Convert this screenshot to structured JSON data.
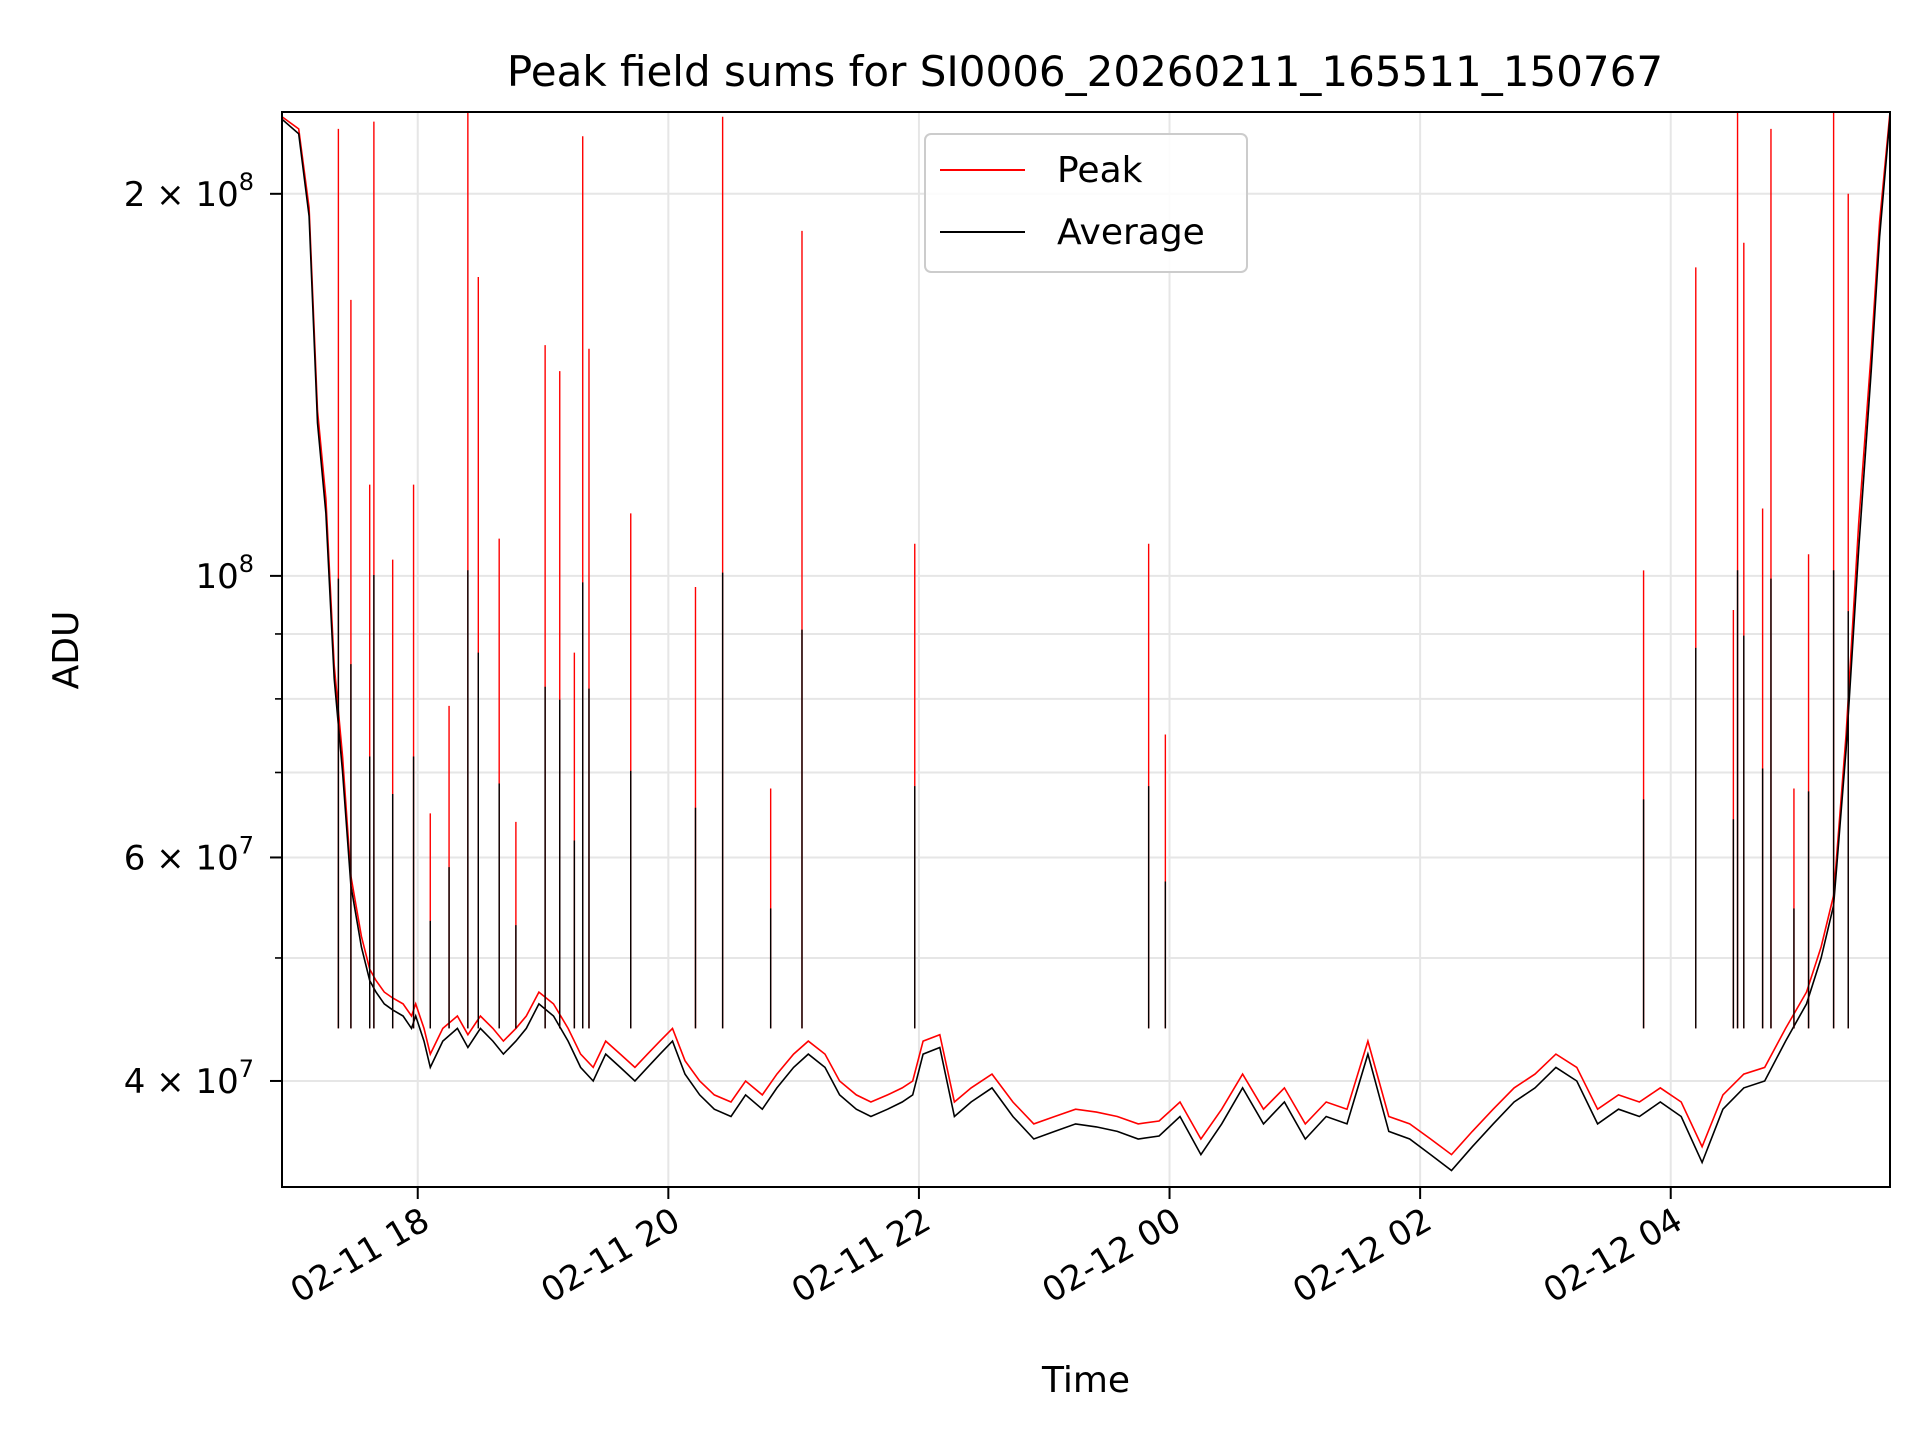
{
  "chart_data": {
    "type": "line",
    "title": "Peak field sums for SI0006_20260211_165511_150767",
    "xlabel": "Time",
    "ylabel": "ADU",
    "y_scale": "log",
    "ylim": [
      33000000,
      232000000
    ],
    "xlim": [
      "2026-02-11 16:55",
      "2026-02-12 05:45"
    ],
    "x_ticks": [
      {
        "value": "2026-02-11 18:00",
        "label": "02-11 18"
      },
      {
        "value": "2026-02-11 20:00",
        "label": "02-11 20"
      },
      {
        "value": "2026-02-11 22:00",
        "label": "02-11 22"
      },
      {
        "value": "2026-02-12 00:00",
        "label": "02-12 00"
      },
      {
        "value": "2026-02-12 02:00",
        "label": "02-12 02"
      },
      {
        "value": "2026-02-12 04:00",
        "label": "02-12 04"
      }
    ],
    "y_ticks": [
      {
        "value": 40000000,
        "label": "4 × 10",
        "exp": "7"
      },
      {
        "value": 60000000,
        "label": "6 × 10",
        "exp": "7"
      },
      {
        "value": 100000000,
        "label": "10",
        "exp": "8"
      },
      {
        "value": 200000000,
        "label": "2 × 10",
        "exp": "8"
      }
    ],
    "y_minor_ticks": [
      50000000,
      70000000,
      80000000,
      90000000
    ],
    "grid": true,
    "legend_position": "top-center",
    "series": [
      {
        "name": "Peak",
        "color": "#ff0000",
        "x": [
          "2026-02-11 16:55",
          "2026-02-11 17:03",
          "2026-02-11 17:08",
          "2026-02-11 17:12",
          "2026-02-11 17:16",
          "2026-02-11 17:20",
          "2026-02-11 17:24",
          "2026-02-11 17:28",
          "2026-02-11 17:33",
          "2026-02-11 17:37",
          "2026-02-11 17:40",
          "2026-02-11 17:44",
          "2026-02-11 17:48",
          "2026-02-11 17:53",
          "2026-02-11 17:57",
          "2026-02-11 17:59",
          "2026-02-11 18:03",
          "2026-02-11 18:06",
          "2026-02-11 18:12",
          "2026-02-11 18:19",
          "2026-02-11 18:24",
          "2026-02-11 18:30",
          "2026-02-11 18:36",
          "2026-02-11 18:41",
          "2026-02-11 18:47",
          "2026-02-11 18:52",
          "2026-02-11 18:58",
          "2026-02-11 19:05",
          "2026-02-11 19:12",
          "2026-02-11 19:18",
          "2026-02-11 19:24",
          "2026-02-11 19:30",
          "2026-02-11 19:37",
          "2026-02-11 19:44",
          "2026-02-11 19:50",
          "2026-02-11 19:56",
          "2026-02-11 20:02",
          "2026-02-11 20:08",
          "2026-02-11 20:15",
          "2026-02-11 20:22",
          "2026-02-11 20:30",
          "2026-02-11 20:37",
          "2026-02-11 20:45",
          "2026-02-11 20:52",
          "2026-02-11 21:00",
          "2026-02-11 21:07",
          "2026-02-11 21:15",
          "2026-02-11 21:22",
          "2026-02-11 21:30",
          "2026-02-11 21:37",
          "2026-02-11 21:45",
          "2026-02-11 21:52",
          "2026-02-11 21:57",
          "2026-02-11 22:02",
          "2026-02-11 22:10",
          "2026-02-11 22:17",
          "2026-02-11 22:25",
          "2026-02-11 22:35",
          "2026-02-11 22:45",
          "2026-02-11 22:55",
          "2026-02-11 23:05",
          "2026-02-11 23:15",
          "2026-02-11 23:25",
          "2026-02-11 23:35",
          "2026-02-11 23:45",
          "2026-02-11 23:55",
          "2026-02-12 00:05",
          "2026-02-12 00:15",
          "2026-02-12 00:25",
          "2026-02-12 00:35",
          "2026-02-12 00:45",
          "2026-02-12 00:55",
          "2026-02-12 01:05",
          "2026-02-12 01:15",
          "2026-02-12 01:25",
          "2026-02-12 01:35",
          "2026-02-12 01:45",
          "2026-02-12 01:55",
          "2026-02-12 02:05",
          "2026-02-12 02:15",
          "2026-02-12 02:25",
          "2026-02-12 02:35",
          "2026-02-12 02:45",
          "2026-02-12 02:55",
          "2026-02-12 03:05",
          "2026-02-12 03:15",
          "2026-02-12 03:25",
          "2026-02-12 03:35",
          "2026-02-12 03:45",
          "2026-02-12 03:55",
          "2026-02-12 04:05",
          "2026-02-12 04:15",
          "2026-02-12 04:25",
          "2026-02-12 04:35",
          "2026-02-12 04:45",
          "2026-02-12 04:55",
          "2026-02-12 05:05",
          "2026-02-12 05:12",
          "2026-02-12 05:18",
          "2026-02-12 05:24",
          "2026-02-12 05:30",
          "2026-02-12 05:36",
          "2026-02-12 05:40",
          "2026-02-12 05:45"
        ],
        "values": [
          230000000,
          225000000,
          195000000,
          135000000,
          115000000,
          85000000,
          72000000,
          58000000,
          52000000,
          49000000,
          48000000,
          47000000,
          46500000,
          46000000,
          45000000,
          46000000,
          44000000,
          42000000,
          44000000,
          45000000,
          43500000,
          45000000,
          44000000,
          43000000,
          44000000,
          45000000,
          47000000,
          46000000,
          44000000,
          42000000,
          41000000,
          43000000,
          42000000,
          41000000,
          42000000,
          43000000,
          44000000,
          41500000,
          40000000,
          39000000,
          38500000,
          40000000,
          39000000,
          40500000,
          42000000,
          43000000,
          42000000,
          40000000,
          39000000,
          38500000,
          39000000,
          39500000,
          40000000,
          43000000,
          43500000,
          38500000,
          39500000,
          40500000,
          38500000,
          37000000,
          37500000,
          38000000,
          37800000,
          37500000,
          37000000,
          37200000,
          38500000,
          36000000,
          38000000,
          40500000,
          38000000,
          39500000,
          37000000,
          38500000,
          38000000,
          43000000,
          37500000,
          37000000,
          36000000,
          35000000,
          36500000,
          38000000,
          39500000,
          40500000,
          42000000,
          41000000,
          38000000,
          39000000,
          38500000,
          39500000,
          38500000,
          35500000,
          39000000,
          40500000,
          41000000,
          44000000,
          47000000,
          51000000,
          56000000,
          75000000,
          110000000,
          150000000,
          190000000,
          232000000
        ]
      },
      {
        "name": "Average",
        "color": "#000000",
        "x": [
          "2026-02-11 16:55",
          "2026-02-11 17:03",
          "2026-02-11 17:08",
          "2026-02-11 17:12",
          "2026-02-11 17:16",
          "2026-02-11 17:20",
          "2026-02-11 17:24",
          "2026-02-11 17:28",
          "2026-02-11 17:33",
          "2026-02-11 17:37",
          "2026-02-11 17:40",
          "2026-02-11 17:44",
          "2026-02-11 17:48",
          "2026-02-11 17:53",
          "2026-02-11 17:57",
          "2026-02-11 17:59",
          "2026-02-11 18:03",
          "2026-02-11 18:06",
          "2026-02-11 18:12",
          "2026-02-11 18:19",
          "2026-02-11 18:24",
          "2026-02-11 18:30",
          "2026-02-11 18:36",
          "2026-02-11 18:41",
          "2026-02-11 18:47",
          "2026-02-11 18:52",
          "2026-02-11 18:58",
          "2026-02-11 19:05",
          "2026-02-11 19:12",
          "2026-02-11 19:18",
          "2026-02-11 19:24",
          "2026-02-11 19:30",
          "2026-02-11 19:37",
          "2026-02-11 19:44",
          "2026-02-11 19:50",
          "2026-02-11 19:56",
          "2026-02-11 20:02",
          "2026-02-11 20:08",
          "2026-02-11 20:15",
          "2026-02-11 20:22",
          "2026-02-11 20:30",
          "2026-02-11 20:37",
          "2026-02-11 20:45",
          "2026-02-11 20:52",
          "2026-02-11 21:00",
          "2026-02-11 21:07",
          "2026-02-11 21:15",
          "2026-02-11 21:22",
          "2026-02-11 21:30",
          "2026-02-11 21:37",
          "2026-02-11 21:45",
          "2026-02-11 21:52",
          "2026-02-11 21:57",
          "2026-02-11 22:02",
          "2026-02-11 22:10",
          "2026-02-11 22:17",
          "2026-02-11 22:25",
          "2026-02-11 22:35",
          "2026-02-11 22:45",
          "2026-02-11 22:55",
          "2026-02-11 23:05",
          "2026-02-11 23:15",
          "2026-02-11 23:25",
          "2026-02-11 23:35",
          "2026-02-11 23:45",
          "2026-02-11 23:55",
          "2026-02-12 00:05",
          "2026-02-12 00:15",
          "2026-02-12 00:25",
          "2026-02-12 00:35",
          "2026-02-12 00:45",
          "2026-02-12 00:55",
          "2026-02-12 01:05",
          "2026-02-12 01:15",
          "2026-02-12 01:25",
          "2026-02-12 01:35",
          "2026-02-12 01:45",
          "2026-02-12 01:55",
          "2026-02-12 02:05",
          "2026-02-12 02:15",
          "2026-02-12 02:25",
          "2026-02-12 02:35",
          "2026-02-12 02:45",
          "2026-02-12 02:55",
          "2026-02-12 03:05",
          "2026-02-12 03:15",
          "2026-02-12 03:25",
          "2026-02-12 03:35",
          "2026-02-12 03:45",
          "2026-02-12 03:55",
          "2026-02-12 04:05",
          "2026-02-12 04:15",
          "2026-02-12 04:25",
          "2026-02-12 04:35",
          "2026-02-12 04:45",
          "2026-02-12 04:55",
          "2026-02-12 05:05",
          "2026-02-12 05:12",
          "2026-02-12 05:18",
          "2026-02-12 05:24",
          "2026-02-12 05:30",
          "2026-02-12 05:36",
          "2026-02-12 05:40",
          "2026-02-12 05:45"
        ],
        "values": [
          229000000,
          223000000,
          192000000,
          132000000,
          112000000,
          83000000,
          70000000,
          57000000,
          51000000,
          48000000,
          47000000,
          46000000,
          45500000,
          45000000,
          44000000,
          45000000,
          43000000,
          41000000,
          43000000,
          44000000,
          42500000,
          44000000,
          43000000,
          42000000,
          43000000,
          44000000,
          46000000,
          45000000,
          43000000,
          41000000,
          40000000,
          42000000,
          41000000,
          40000000,
          41000000,
          42000000,
          43000000,
          40500000,
          39000000,
          38000000,
          37500000,
          39000000,
          38000000,
          39500000,
          41000000,
          42000000,
          41000000,
          39000000,
          38000000,
          37500000,
          38000000,
          38500000,
          39000000,
          42000000,
          42500000,
          37500000,
          38500000,
          39500000,
          37500000,
          36000000,
          36500000,
          37000000,
          36800000,
          36500000,
          36000000,
          36200000,
          37500000,
          35000000,
          37000000,
          39500000,
          37000000,
          38500000,
          36000000,
          37500000,
          37000000,
          42000000,
          36500000,
          36000000,
          35000000,
          34000000,
          35500000,
          37000000,
          38500000,
          39500000,
          41000000,
          40000000,
          37000000,
          38000000,
          37500000,
          38500000,
          37500000,
          34500000,
          38000000,
          39500000,
          40000000,
          43000000,
          46000000,
          50000000,
          55000000,
          73000000,
          105000000,
          145000000,
          185000000,
          230000000
        ]
      }
    ],
    "spikes": [
      {
        "series": "Peak",
        "x": "2026-02-11 17:22",
        "value": 225000000
      },
      {
        "series": "Peak",
        "x": "2026-02-11 17:28",
        "value": 165000000
      },
      {
        "series": "Peak",
        "x": "2026-02-11 17:37",
        "value": 118000000
      },
      {
        "series": "Peak",
        "x": "2026-02-11 17:39",
        "value": 228000000
      },
      {
        "series": "Peak",
        "x": "2026-02-11 17:48",
        "value": 103000000
      },
      {
        "series": "Peak",
        "x": "2026-02-11 17:58",
        "value": 118000000
      },
      {
        "series": "Peak",
        "x": "2026-02-11 18:06",
        "value": 65000000
      },
      {
        "series": "Peak",
        "x": "2026-02-11 18:15",
        "value": 79000000
      },
      {
        "series": "Peak",
        "x": "2026-02-11 18:24",
        "value": 232000000
      },
      {
        "series": "Peak",
        "x": "2026-02-11 18:29",
        "value": 172000000
      },
      {
        "series": "Peak",
        "x": "2026-02-11 18:39",
        "value": 107000000
      },
      {
        "series": "Peak",
        "x": "2026-02-11 18:47",
        "value": 64000000
      },
      {
        "series": "Peak",
        "x": "2026-02-11 19:01",
        "value": 152000000
      },
      {
        "series": "Peak",
        "x": "2026-02-11 19:08",
        "value": 145000000
      },
      {
        "series": "Peak",
        "x": "2026-02-11 19:15",
        "value": 87000000
      },
      {
        "series": "Peak",
        "x": "2026-02-11 19:19",
        "value": 222000000
      },
      {
        "series": "Peak",
        "x": "2026-02-11 19:22",
        "value": 151000000
      },
      {
        "series": "Peak",
        "x": "2026-02-11 19:42",
        "value": 112000000
      },
      {
        "series": "Peak",
        "x": "2026-02-11 20:13",
        "value": 98000000
      },
      {
        "series": "Peak",
        "x": "2026-02-11 20:26",
        "value": 230000000
      },
      {
        "series": "Peak",
        "x": "2026-02-11 20:49",
        "value": 68000000
      },
      {
        "series": "Peak",
        "x": "2026-02-11 21:04",
        "value": 187000000
      },
      {
        "series": "Peak",
        "x": "2026-02-11 21:58",
        "value": 106000000
      },
      {
        "series": "Peak",
        "x": "2026-02-11 23:50",
        "value": 106000000
      },
      {
        "series": "Peak",
        "x": "2026-02-11 23:58",
        "value": 75000000
      },
      {
        "series": "Peak",
        "x": "2026-02-12 03:47",
        "value": 101000000
      },
      {
        "series": "Peak",
        "x": "2026-02-12 04:12",
        "value": 175000000
      },
      {
        "series": "Peak",
        "x": "2026-02-12 04:30",
        "value": 94000000
      },
      {
        "series": "Peak",
        "x": "2026-02-12 04:32",
        "value": 232000000
      },
      {
        "series": "Peak",
        "x": "2026-02-12 04:35",
        "value": 183000000
      },
      {
        "series": "Peak",
        "x": "2026-02-12 04:44",
        "value": 113000000
      },
      {
        "series": "Peak",
        "x": "2026-02-12 04:48",
        "value": 225000000
      },
      {
        "series": "Peak",
        "x": "2026-02-12 04:59",
        "value": 68000000
      },
      {
        "series": "Peak",
        "x": "2026-02-12 05:06",
        "value": 104000000
      },
      {
        "series": "Peak",
        "x": "2026-02-12 05:18",
        "value": 232000000
      },
      {
        "series": "Peak",
        "x": "2026-02-12 05:25",
        "value": 200000000
      }
    ]
  }
}
